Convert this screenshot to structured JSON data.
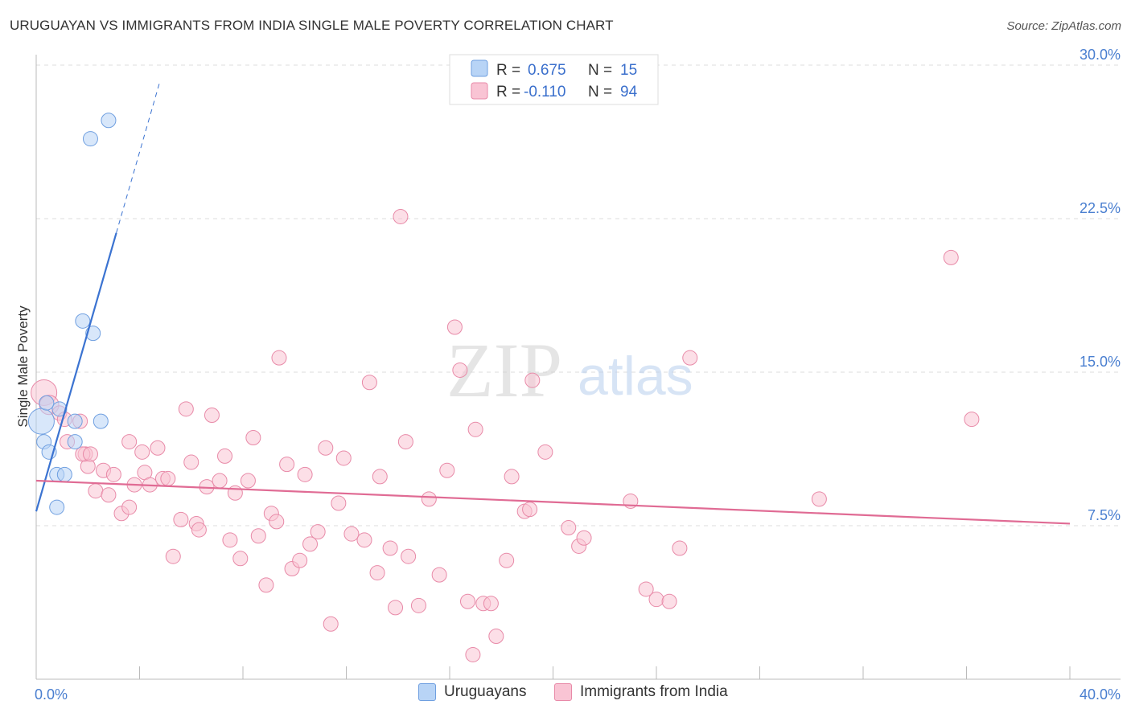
{
  "title": "URUGUAYAN VS IMMIGRANTS FROM INDIA SINGLE MALE POVERTY CORRELATION CHART",
  "source": "Source: ZipAtlas.com",
  "watermark": {
    "zip": "ZIP",
    "atlas": "atlas"
  },
  "legend": {
    "rows": [
      {
        "r_label": "R =",
        "r_value": "0.675",
        "n_label": "N =",
        "n_value": "15",
        "color": "#b8d4f6",
        "stroke": "#6f9fe0"
      },
      {
        "r_label": "R =",
        "r_value": "-0.110",
        "n_label": "N =",
        "n_value": "94",
        "color": "#f9c4d4",
        "stroke": "#e88aa8"
      }
    ]
  },
  "bottom_legend": {
    "items": [
      {
        "label": "Uruguayans",
        "color": "#b8d4f6",
        "stroke": "#6f9fe0"
      },
      {
        "label": "Immigrants from India",
        "color": "#f9c4d4",
        "stroke": "#e88aa8"
      }
    ]
  },
  "chart_data": {
    "type": "scatter",
    "title": "URUGUAYAN VS IMMIGRANTS FROM INDIA SINGLE MALE POVERTY CORRELATION CHART",
    "xlabel": "",
    "ylabel": "Single Male Poverty",
    "xlim": [
      0,
      40
    ],
    "ylim": [
      0,
      30
    ],
    "x_tick_labels": [
      "0.0%",
      "40.0%"
    ],
    "y_ticks": [
      7.5,
      15.0,
      22.5,
      30.0
    ],
    "y_tick_labels": [
      "7.5%",
      "15.0%",
      "22.5%",
      "30.0%"
    ],
    "grid": true,
    "series": [
      {
        "name": "Uruguayans",
        "color": "#6f9fe0",
        "fill": "#b8d4f6",
        "trend": {
          "x0": 0.0,
          "y0": 8.2,
          "x1": 3.1,
          "y1": 21.8,
          "dash_to_x": 4.8,
          "line_color": "#3b73d1"
        },
        "points": [
          [
            0.2,
            12.6,
            16
          ],
          [
            0.3,
            11.6,
            9
          ],
          [
            0.5,
            11.1,
            9
          ],
          [
            0.8,
            10.0,
            9
          ],
          [
            1.1,
            10.0,
            9
          ],
          [
            0.9,
            13.2,
            9
          ],
          [
            1.5,
            12.6,
            9
          ],
          [
            1.5,
            11.6,
            9
          ],
          [
            0.8,
            8.4,
            9
          ],
          [
            2.5,
            12.6,
            9
          ],
          [
            1.8,
            17.5,
            9
          ],
          [
            2.2,
            16.9,
            9
          ],
          [
            2.1,
            26.4,
            9
          ],
          [
            2.8,
            27.3,
            9
          ],
          [
            0.4,
            13.5,
            9
          ]
        ]
      },
      {
        "name": "Immigrants from India",
        "color": "#e88aa8",
        "fill": "#f9c4d4",
        "trend": {
          "x0": 0.0,
          "y0": 9.7,
          "x1": 40.0,
          "y1": 7.6,
          "line_color": "#e06b94"
        },
        "points": [
          [
            0.3,
            14.0,
            16
          ],
          [
            0.5,
            13.4,
            12
          ],
          [
            0.9,
            13.0,
            9
          ],
          [
            1.1,
            12.7,
            9
          ],
          [
            1.7,
            12.6,
            9
          ],
          [
            1.2,
            11.6,
            9
          ],
          [
            1.9,
            11.0,
            9
          ],
          [
            2.0,
            10.4,
            9
          ],
          [
            1.8,
            11.0,
            9
          ],
          [
            2.1,
            11.0,
            9
          ],
          [
            2.3,
            9.2,
            9
          ],
          [
            2.6,
            10.2,
            9
          ],
          [
            2.8,
            9.0,
            9
          ],
          [
            3.0,
            10.0,
            9
          ],
          [
            3.3,
            8.1,
            9
          ],
          [
            3.6,
            8.4,
            9
          ],
          [
            3.6,
            11.6,
            9
          ],
          [
            3.8,
            9.5,
            9
          ],
          [
            4.1,
            11.1,
            9
          ],
          [
            4.2,
            10.1,
            9
          ],
          [
            4.4,
            9.5,
            9
          ],
          [
            4.7,
            11.3,
            9
          ],
          [
            4.9,
            9.8,
            9
          ],
          [
            5.1,
            9.8,
            9
          ],
          [
            5.3,
            6.0,
            9
          ],
          [
            5.6,
            7.8,
            9
          ],
          [
            5.8,
            13.2,
            9
          ],
          [
            6.0,
            10.6,
            9
          ],
          [
            6.2,
            7.6,
            9
          ],
          [
            6.3,
            7.3,
            9
          ],
          [
            6.6,
            9.4,
            9
          ],
          [
            6.8,
            12.9,
            9
          ],
          [
            7.1,
            9.7,
            9
          ],
          [
            7.3,
            10.9,
            9
          ],
          [
            7.5,
            6.8,
            9
          ],
          [
            7.7,
            9.1,
            9
          ],
          [
            7.9,
            5.9,
            9
          ],
          [
            8.2,
            9.7,
            9
          ],
          [
            8.4,
            11.8,
            9
          ],
          [
            8.6,
            7.0,
            9
          ],
          [
            8.9,
            4.6,
            9
          ],
          [
            9.1,
            8.1,
            9
          ],
          [
            9.3,
            7.7,
            9
          ],
          [
            9.4,
            15.7,
            9
          ],
          [
            9.7,
            10.5,
            9
          ],
          [
            9.9,
            5.4,
            9
          ],
          [
            10.2,
            5.8,
            9
          ],
          [
            10.4,
            10.0,
            9
          ],
          [
            10.6,
            6.6,
            9
          ],
          [
            10.9,
            7.2,
            9
          ],
          [
            11.2,
            11.3,
            9
          ],
          [
            11.4,
            2.7,
            9
          ],
          [
            11.7,
            8.6,
            9
          ],
          [
            11.9,
            10.8,
            9
          ],
          [
            12.2,
            7.1,
            9
          ],
          [
            12.7,
            6.8,
            9
          ],
          [
            12.9,
            14.5,
            9
          ],
          [
            13.2,
            5.2,
            9
          ],
          [
            13.3,
            9.9,
            9
          ],
          [
            13.7,
            6.4,
            9
          ],
          [
            13.9,
            3.5,
            9
          ],
          [
            14.3,
            11.6,
            9
          ],
          [
            14.4,
            6.0,
            9
          ],
          [
            14.8,
            3.6,
            9
          ],
          [
            14.1,
            22.6,
            9
          ],
          [
            15.2,
            8.8,
            9
          ],
          [
            15.6,
            5.1,
            9
          ],
          [
            15.9,
            10.2,
            9
          ],
          [
            16.2,
            17.2,
            9
          ],
          [
            16.4,
            15.1,
            9
          ],
          [
            16.7,
            3.8,
            9
          ],
          [
            17.0,
            12.2,
            9
          ],
          [
            17.3,
            3.7,
            9
          ],
          [
            17.6,
            3.7,
            9
          ],
          [
            17.8,
            2.1,
            9
          ],
          [
            16.9,
            1.2,
            9
          ],
          [
            18.2,
            5.8,
            9
          ],
          [
            18.4,
            9.9,
            9
          ],
          [
            18.9,
            8.2,
            9
          ],
          [
            19.1,
            8.3,
            9
          ],
          [
            19.2,
            14.6,
            9
          ],
          [
            19.7,
            11.1,
            9
          ],
          [
            20.6,
            7.4,
            9
          ],
          [
            21.0,
            6.5,
            9
          ],
          [
            21.2,
            6.9,
            9
          ],
          [
            23.0,
            8.7,
            9
          ],
          [
            23.6,
            4.4,
            9
          ],
          [
            24.0,
            3.9,
            9
          ],
          [
            24.5,
            3.8,
            9
          ],
          [
            24.9,
            6.4,
            9
          ],
          [
            25.3,
            15.7,
            9
          ],
          [
            30.3,
            8.8,
            9
          ],
          [
            35.4,
            20.6,
            9
          ],
          [
            36.2,
            12.7,
            9
          ]
        ]
      }
    ]
  }
}
